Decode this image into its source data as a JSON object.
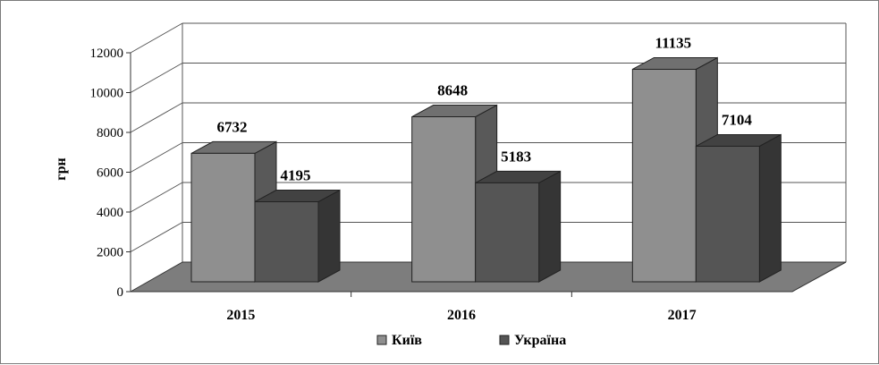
{
  "chart_data": {
    "type": "bar",
    "title": "",
    "xlabel": "",
    "ylabel": "грн",
    "categories": [
      "2015",
      "2016",
      "2017"
    ],
    "ylim": [
      0,
      12000
    ],
    "yticks": [
      "0",
      "2000",
      "4000",
      "6000",
      "8000",
      "10000",
      "12000"
    ],
    "series": [
      {
        "name": "Київ",
        "values": [
          6732,
          8648,
          11135
        ],
        "color": "#8f8f8f"
      },
      {
        "name": "Україна",
        "values": [
          4195,
          5183,
          7104
        ],
        "color": "#555555"
      }
    ],
    "data_labels": [
      [
        "6732",
        "8648",
        "11135"
      ],
      [
        "4195",
        "5183",
        "7104"
      ]
    ],
    "grid": true,
    "three_d": true,
    "legend_position": "bottom"
  }
}
